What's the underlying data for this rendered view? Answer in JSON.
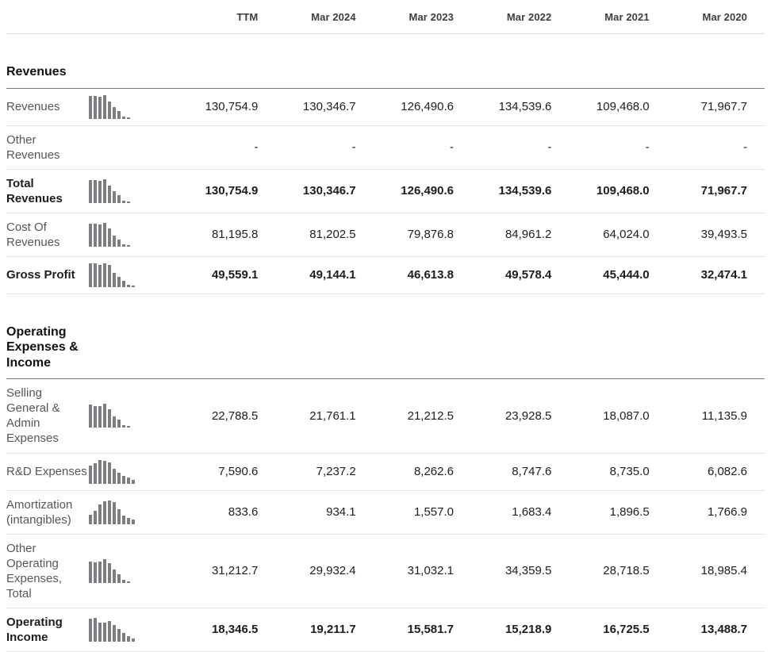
{
  "header": {
    "columns": [
      "TTM",
      "Mar 2024",
      "Mar 2023",
      "Mar 2022",
      "Mar 2021",
      "Mar 2020"
    ]
  },
  "colors": {
    "text_primary": "#1d1d1f",
    "text_secondary": "#57575b",
    "header_text": "#3e3e42",
    "sparkline_bar": "#7e7e82",
    "divider_light": "#e4e4e6",
    "divider_dark": "#7a7a7e"
  },
  "sections": [
    {
      "title": "Revenues",
      "rows": [
        {
          "label": "Revenues",
          "bold": false,
          "sparkline": [
            0.95,
            0.97,
            0.93,
            1.0,
            0.72,
            0.5,
            0.33,
            0.1,
            0.07
          ],
          "values": [
            "130,754.9",
            "130,346.7",
            "126,490.6",
            "134,539.6",
            "109,468.0",
            "71,967.7"
          ]
        },
        {
          "label": "Other Revenues",
          "bold": false,
          "sparkline": null,
          "values": [
            "-",
            "-",
            "-",
            "-",
            "-",
            "-"
          ]
        },
        {
          "label": "Total Revenues",
          "bold": true,
          "sparkline": [
            0.95,
            0.97,
            0.93,
            1.0,
            0.72,
            0.5,
            0.33,
            0.1,
            0.07
          ],
          "values": [
            "130,754.9",
            "130,346.7",
            "126,490.6",
            "134,539.6",
            "109,468.0",
            "71,967.7"
          ]
        },
        {
          "label": "Cost Of Revenues",
          "bold": false,
          "sparkline": [
            0.96,
            0.96,
            0.94,
            1.0,
            0.75,
            0.47,
            0.3,
            0.1,
            0.06
          ],
          "values": [
            "81,195.8",
            "81,202.5",
            "79,876.8",
            "84,961.2",
            "64,024.0",
            "39,493.5"
          ]
        },
        {
          "label": "Gross Profit",
          "bold": true,
          "sparkline": [
            1.0,
            0.99,
            0.94,
            1.0,
            0.92,
            0.6,
            0.42,
            0.25,
            0.1,
            0.07
          ],
          "values": [
            "49,559.1",
            "49,144.1",
            "46,613.8",
            "49,578.4",
            "45,444.0",
            "32,474.1"
          ]
        }
      ]
    },
    {
      "title": "Operating Expenses & Income",
      "rows": [
        {
          "label": "Selling General & Admin Expenses",
          "bold": false,
          "sparkline": [
            0.95,
            0.91,
            0.89,
            1.0,
            0.76,
            0.47,
            0.33,
            0.1,
            0.07
          ],
          "values": [
            "22,788.5",
            "21,761.1",
            "21,212.5",
            "23,928.5",
            "18,087.0",
            "11,135.9"
          ]
        },
        {
          "label": "R&D Expenses",
          "bold": false,
          "sparkline": [
            0.78,
            0.88,
            1.0,
            0.95,
            0.9,
            0.62,
            0.45,
            0.33,
            0.26,
            0.16
          ],
          "values": [
            "7,590.6",
            "7,237.2",
            "8,262.6",
            "8,747.6",
            "8,735.0",
            "6,082.6"
          ]
        },
        {
          "label": "Amortization (intangibles)",
          "bold": false,
          "sparkline": [
            0.4,
            0.55,
            0.82,
            0.95,
            1.0,
            0.93,
            0.62,
            0.38,
            0.28,
            0.2
          ],
          "values": [
            "833.6",
            "934.1",
            "1,557.0",
            "1,683.4",
            "1,896.5",
            "1,766.9"
          ]
        },
        {
          "label": "Other Operating Expenses, Total",
          "bold": false,
          "sparkline": [
            0.91,
            0.87,
            0.9,
            1.0,
            0.84,
            0.55,
            0.38,
            0.12,
            0.08
          ],
          "values": [
            "31,212.7",
            "29,932.4",
            "31,032.1",
            "34,359.5",
            "28,718.5",
            "18,985.4"
          ]
        },
        {
          "label": "Operating Income",
          "bold": true,
          "sparkline": [
            0.95,
            1.0,
            0.81,
            0.79,
            0.87,
            0.7,
            0.52,
            0.35,
            0.22,
            0.14
          ],
          "values": [
            "18,346.5",
            "19,211.7",
            "15,581.7",
            "15,218.9",
            "16,725.5",
            "13,488.7"
          ]
        }
      ]
    }
  ]
}
